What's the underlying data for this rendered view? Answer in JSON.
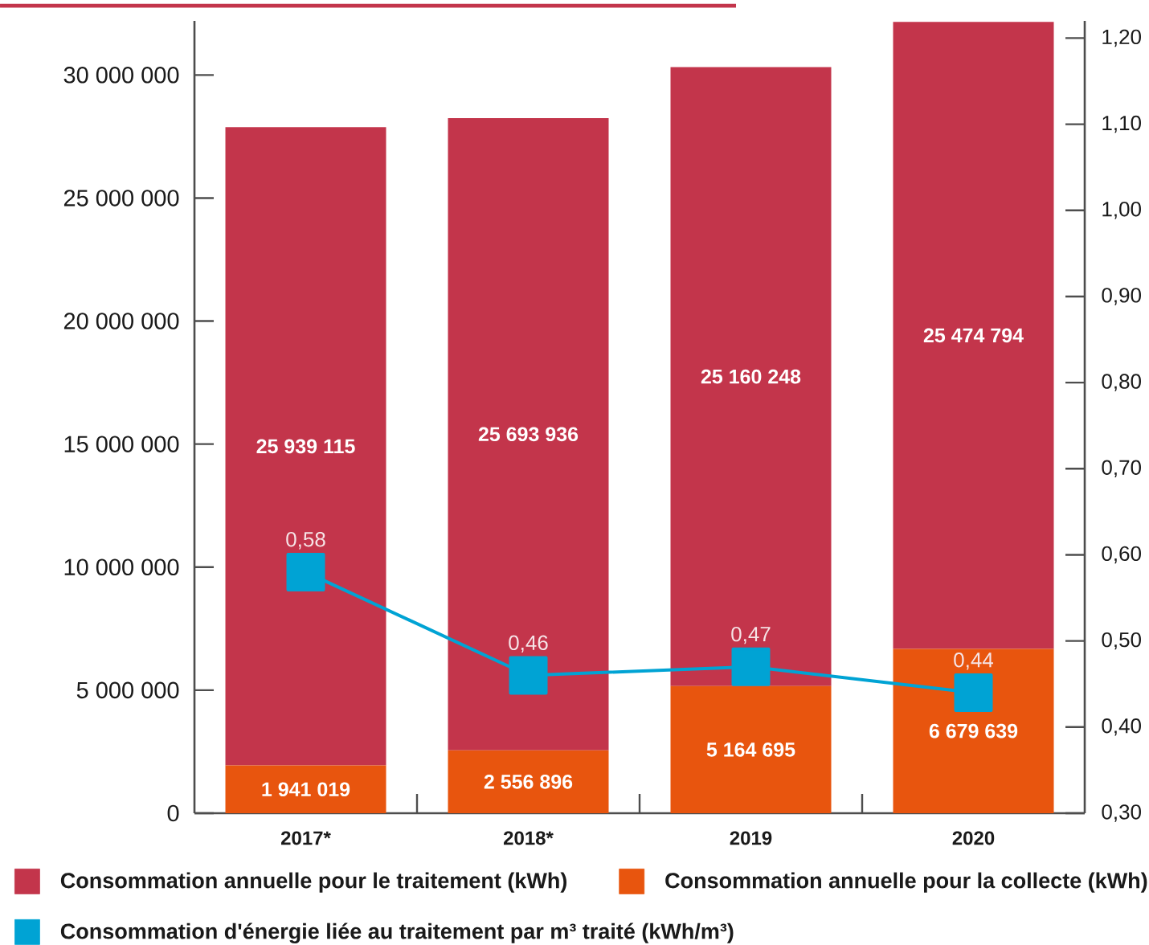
{
  "chart_data": {
    "type": "bar",
    "stacked": true,
    "categories": [
      "2017*",
      "2018*",
      "2019",
      "2020"
    ],
    "series": [
      {
        "name": "Consommation annuelle pour la collecte (kWh)",
        "color": "#e8550e",
        "values": [
          1941019,
          2556896,
          5164695,
          6679639
        ],
        "value_labels": [
          "1 941 019",
          "2 556 896",
          "5 164 695",
          "6 679 639"
        ]
      },
      {
        "name": "Consommation annuelle pour le traitement (kWh)",
        "color": "#c3354b",
        "values": [
          25939115,
          25693936,
          25160248,
          25474794
        ],
        "value_labels": [
          "25 939 115",
          "25 693 936",
          "25 160 248",
          "25 474 794"
        ]
      },
      {
        "name": "Consommation d'énergie liée au traitement par m³ traité (kWh/m³)",
        "type": "line",
        "axis": "y2",
        "color": "#00a3d4",
        "values": [
          0.58,
          0.46,
          0.47,
          0.44
        ],
        "value_labels": [
          "0,58",
          "0,46",
          "0,47",
          "0,44"
        ]
      }
    ],
    "ylim": [
      0,
      32200000
    ],
    "yticks": [
      0,
      {
        "value": 5000000,
        "label": "5 000 000"
      },
      {
        "value": 10000000,
        "label": "10 000 000"
      },
      {
        "value": 15000000,
        "label": "15 000 000"
      },
      {
        "value": 20000000,
        "label": "20 000 000"
      },
      {
        "value": 25000000,
        "label": "25 000 000"
      },
      {
        "value": 30000000,
        "label": "30 000 000"
      }
    ],
    "y2lim": [
      0.3,
      1.22
    ],
    "y2ticks": [
      {
        "value": 0.3,
        "label": "0,30"
      },
      {
        "value": 0.4,
        "label": "0,40"
      },
      {
        "value": 0.5,
        "label": "0,50"
      },
      {
        "value": 0.6,
        "label": "0,60"
      },
      {
        "value": 0.7,
        "label": "0,70"
      },
      {
        "value": 0.8,
        "label": "0,80"
      },
      {
        "value": 0.9,
        "label": "0,90"
      },
      {
        "value": 1.0,
        "label": "1,00"
      },
      {
        "value": 1.1,
        "label": "1,10"
      },
      {
        "value": 1.2,
        "label": "1,20"
      }
    ],
    "marker": "square",
    "legend": "bottom"
  }
}
